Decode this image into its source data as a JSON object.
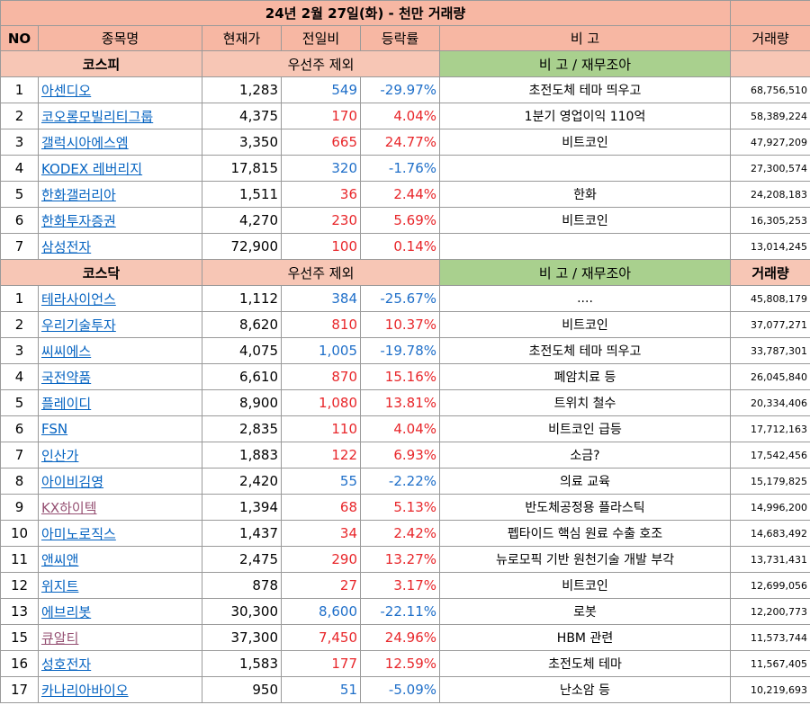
{
  "title": "24년 2월 27일(화) - 천만 거래량",
  "headers": [
    "NO",
    "종목명",
    "현재가",
    "전일비",
    "등락률",
    "비 고",
    "거래량"
  ],
  "kospi": {
    "section_label": "코스피",
    "sub_label": "우선주 제외",
    "note_label": "비 고 / 재무조아",
    "volume_label": "",
    "rows": [
      {
        "no": "1",
        "name": "아센디오",
        "price": "1,283",
        "change": "549",
        "rate": "-29.97%",
        "dir": "down",
        "note": "초전도체 테마 띄우고",
        "volume": "68,756,510",
        "visited": false
      },
      {
        "no": "2",
        "name": "코오롱모빌리티그룹",
        "price": "4,375",
        "change": "170",
        "rate": "4.04%",
        "dir": "up",
        "note": "1분기 영업이익 110억",
        "volume": "58,389,224",
        "visited": false
      },
      {
        "no": "3",
        "name": "갤럭시아에스엠",
        "price": "3,350",
        "change": "665",
        "rate": "24.77%",
        "dir": "up",
        "note": "비트코인",
        "volume": "47,927,209",
        "visited": false
      },
      {
        "no": "4",
        "name": "KODEX 레버리지",
        "price": "17,815",
        "change": "320",
        "rate": "-1.76%",
        "dir": "down",
        "note": "",
        "volume": "27,300,574",
        "visited": false
      },
      {
        "no": "5",
        "name": "한화갤러리아",
        "price": "1,511",
        "change": "36",
        "rate": "2.44%",
        "dir": "up",
        "note": "한화",
        "volume": "24,208,183",
        "visited": false
      },
      {
        "no": "6",
        "name": "한화투자증권",
        "price": "4,270",
        "change": "230",
        "rate": "5.69%",
        "dir": "up",
        "note": "비트코인",
        "volume": "16,305,253",
        "visited": false
      },
      {
        "no": "7",
        "name": "삼성전자",
        "price": "72,900",
        "change": "100",
        "rate": "0.14%",
        "dir": "up",
        "note": "",
        "volume": "13,014,245",
        "visited": false
      }
    ]
  },
  "kosdaq": {
    "section_label": "코스닥",
    "sub_label": "우선주 제외",
    "note_label": "비 고 / 재무조아",
    "volume_label": "거래량",
    "rows": [
      {
        "no": "1",
        "name": "테라사이언스",
        "price": "1,112",
        "change": "384",
        "rate": "-25.67%",
        "dir": "down",
        "note": "....",
        "volume": "45,808,179",
        "visited": false
      },
      {
        "no": "2",
        "name": "우리기술투자",
        "price": "8,620",
        "change": "810",
        "rate": "10.37%",
        "dir": "up",
        "note": "비트코인",
        "volume": "37,077,271",
        "visited": false
      },
      {
        "no": "3",
        "name": "씨씨에스",
        "price": "4,075",
        "change": "1,005",
        "rate": "-19.78%",
        "dir": "down",
        "note": "초전도체 테마 띄우고",
        "volume": "33,787,301",
        "visited": false
      },
      {
        "no": "4",
        "name": "국전약품",
        "price": "6,610",
        "change": "870",
        "rate": "15.16%",
        "dir": "up",
        "note": "폐암치료 등",
        "volume": "26,045,840",
        "visited": false
      },
      {
        "no": "5",
        "name": "플레이디",
        "price": "8,900",
        "change": "1,080",
        "rate": "13.81%",
        "dir": "up",
        "note": "트위치 철수",
        "volume": "20,334,406",
        "visited": false
      },
      {
        "no": "6",
        "name": "FSN",
        "price": "2,835",
        "change": "110",
        "rate": "4.04%",
        "dir": "up",
        "note": "비트코인 급등",
        "volume": "17,712,163",
        "visited": false
      },
      {
        "no": "7",
        "name": "인산가",
        "price": "1,883",
        "change": "122",
        "rate": "6.93%",
        "dir": "up",
        "note": "소금?",
        "volume": "17,542,456",
        "visited": false
      },
      {
        "no": "8",
        "name": "아이비김영",
        "price": "2,420",
        "change": "55",
        "rate": "-2.22%",
        "dir": "down",
        "note": "의료 교육",
        "volume": "15,179,825",
        "visited": false
      },
      {
        "no": "9",
        "name": "KX하이텍",
        "price": "1,394",
        "change": "68",
        "rate": "5.13%",
        "dir": "up",
        "note": "반도체공정용 플라스틱",
        "volume": "14,996,200",
        "visited": true
      },
      {
        "no": "10",
        "name": "아미노로직스",
        "price": "1,437",
        "change": "34",
        "rate": "2.42%",
        "dir": "up",
        "note": "펩타이드 핵심 원료 수출 호조",
        "volume": "14,683,492",
        "visited": false
      },
      {
        "no": "11",
        "name": "앤씨앤",
        "price": "2,475",
        "change": "290",
        "rate": "13.27%",
        "dir": "up",
        "note": "뉴로모픽 기반 원천기술 개발 부각",
        "volume": "13,731,431",
        "visited": false
      },
      {
        "no": "12",
        "name": "위지트",
        "price": "878",
        "change": "27",
        "rate": "3.17%",
        "dir": "up",
        "note": "비트코인",
        "volume": "12,699,056",
        "visited": false
      },
      {
        "no": "13",
        "name": "에브리봇",
        "price": "30,300",
        "change": "8,600",
        "rate": "-22.11%",
        "dir": "down",
        "note": "로봇",
        "volume": "12,200,773",
        "visited": false
      },
      {
        "no": "15",
        "name": "큐알티",
        "price": "37,300",
        "change": "7,450",
        "rate": "24.96%",
        "dir": "up",
        "note": "HBM 관련",
        "volume": "11,573,744",
        "visited": true
      },
      {
        "no": "16",
        "name": "성호전자",
        "price": "1,583",
        "change": "177",
        "rate": "12.59%",
        "dir": "up",
        "note": "초전도체 테마",
        "volume": "11,567,405",
        "visited": false
      },
      {
        "no": "17",
        "name": "카나리아바이오",
        "price": "950",
        "change": "51",
        "rate": "-5.09%",
        "dir": "down",
        "note": "난소암 등",
        "volume": "10,219,693",
        "visited": false
      }
    ]
  },
  "colors": {
    "header_bg": "#f7c6b5",
    "note_bg": "#a9d08e",
    "up": "#e8262a",
    "down": "#1f6fc9",
    "link": "#0563c1",
    "link_visited": "#954f72"
  }
}
